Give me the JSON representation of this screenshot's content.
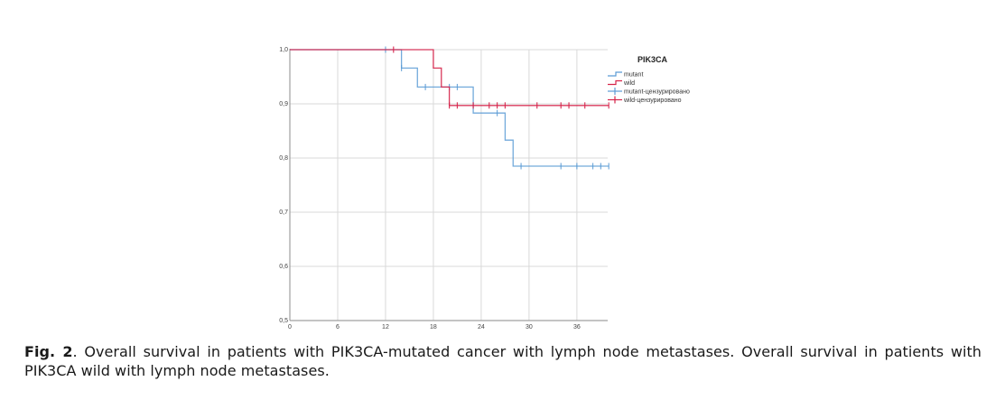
{
  "chart_data": {
    "type": "line",
    "subtype": "kaplan-meier",
    "title": "",
    "xlabel": "",
    "ylabel": "",
    "xlim": [
      0,
      40
    ],
    "ylim": [
      0.5,
      1.0
    ],
    "x_ticks": [
      0,
      6,
      12,
      18,
      24,
      30,
      36
    ],
    "x_tick_labels": [
      "0",
      "6",
      "12",
      "18",
      "24",
      "30",
      "36"
    ],
    "y_ticks": [
      0.5,
      0.6,
      0.7,
      0.8,
      0.9,
      1.0
    ],
    "y_tick_labels": [
      "0,5",
      "0,6",
      "0,7",
      "0,8",
      "0,9",
      "1,0"
    ],
    "grid": true,
    "legend": {
      "title": "PIK3CA",
      "placement": "top-right",
      "entries": [
        {
          "label": "mutant",
          "kind": "line",
          "color": "#5b9bd5"
        },
        {
          "label": "wild",
          "kind": "line",
          "color": "#d6244a"
        },
        {
          "label": "mutant-цензурировано",
          "kind": "censor",
          "color": "#5b9bd5"
        },
        {
          "label": "wild-цензурировано",
          "kind": "censor",
          "color": "#d6244a"
        }
      ]
    },
    "series": [
      {
        "name": "mutant",
        "color": "#5b9bd5",
        "steps": [
          [
            0,
            1.0
          ],
          [
            14,
            0.966
          ],
          [
            16,
            0.931
          ],
          [
            23,
            0.883
          ],
          [
            27,
            0.833
          ],
          [
            28,
            0.785
          ]
        ],
        "end_x": 40,
        "censored": [
          [
            12,
            1.0
          ],
          [
            14,
            0.966
          ],
          [
            17,
            0.931
          ],
          [
            20,
            0.931
          ],
          [
            21,
            0.931
          ],
          [
            26,
            0.883
          ],
          [
            29,
            0.785
          ],
          [
            34,
            0.785
          ],
          [
            36,
            0.785
          ],
          [
            38,
            0.785
          ],
          [
            39,
            0.785
          ],
          [
            40,
            0.785
          ]
        ]
      },
      {
        "name": "wild",
        "color": "#d6244a",
        "steps": [
          [
            0,
            1.0
          ],
          [
            18,
            0.966
          ],
          [
            19,
            0.931
          ],
          [
            20,
            0.897
          ]
        ],
        "end_x": 40,
        "censored": [
          [
            13,
            1.0
          ],
          [
            20,
            0.897
          ],
          [
            21,
            0.897
          ],
          [
            23,
            0.897
          ],
          [
            25,
            0.897
          ],
          [
            26,
            0.897
          ],
          [
            27,
            0.897
          ],
          [
            31,
            0.897
          ],
          [
            34,
            0.897
          ],
          [
            35,
            0.897
          ],
          [
            37,
            0.897
          ],
          [
            40,
            0.897
          ]
        ]
      }
    ]
  },
  "caption": {
    "label": "Fig. 2",
    "text": ". Overall survival in patients with PIK3CA-mutated cancer with lymph node metastases. Overall survival in patients with PIK3CA wild with lymph node metastases."
  }
}
